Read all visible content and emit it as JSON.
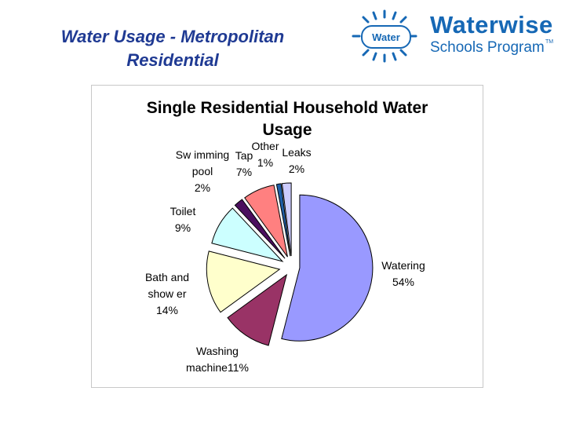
{
  "slide": {
    "title": "Water Usage - Metropolitan Residential"
  },
  "logo": {
    "badge_text": "Water",
    "wordmark": "Waterwise",
    "subtitle": "Schools Program",
    "trademark": "TM"
  },
  "colors": {
    "title": "#1f3a93",
    "logo": "#1668b5"
  },
  "chart_data": {
    "type": "pie",
    "title": "Single Residential Household Water Usage",
    "slices": [
      {
        "label": "Watering",
        "value": 54,
        "display": "54%",
        "color": "#9999ff"
      },
      {
        "label": "Washing machine",
        "value": 11,
        "display": "11%",
        "color": "#993366"
      },
      {
        "label": "Bath and shower",
        "value": 14,
        "display": "14%",
        "color": "#ffffcc"
      },
      {
        "label": "Toilet",
        "value": 9,
        "display": "9%",
        "color": "#ccffff"
      },
      {
        "label": "Swimming pool",
        "value": 2,
        "display": "2%",
        "color": "#4b0f5e"
      },
      {
        "label": "Tap",
        "value": 7,
        "display": "7%",
        "color": "#ff8080"
      },
      {
        "label": "Other",
        "value": 1,
        "display": "1%",
        "color": "#1f5fa8"
      },
      {
        "label": "Leaks",
        "value": 2,
        "display": "2%",
        "color": "#ccccff"
      }
    ],
    "label_lines": [
      [
        "Watering",
        "54%"
      ],
      [
        "Washing",
        "machine11%"
      ],
      [
        "Bath and",
        "show er",
        "14%"
      ],
      [
        "Toilet",
        "9%"
      ],
      [
        "Sw imming",
        "pool",
        "2%"
      ],
      [
        "Tap",
        "7%"
      ],
      [
        "Other",
        "1%"
      ],
      [
        "Leaks",
        "2%"
      ]
    ]
  }
}
